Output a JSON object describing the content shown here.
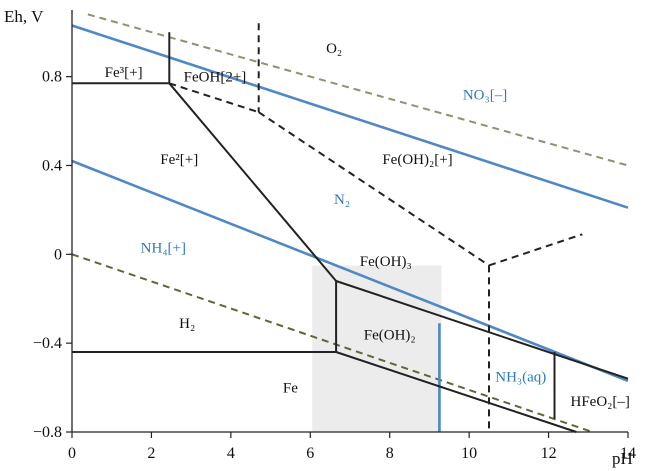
{
  "chart_data": {
    "type": "diagram",
    "xlabel": "pH",
    "ylabel": "Eh, V",
    "xlim": [
      0,
      14
    ],
    "ylim": [
      -0.8,
      1.1
    ],
    "x_ticks": [
      "0",
      "2",
      "4",
      "6",
      "8",
      "10",
      "12",
      "14"
    ],
    "y_ticks": [
      "−0.8",
      "−0.4",
      "0",
      "0.4",
      "0.8"
    ],
    "shaded_region": {
      "x": [
        6.05,
        9.3
      ],
      "y": [
        -0.8,
        -0.05
      ],
      "color": "#ececec"
    },
    "regions": [
      {
        "label": "O₂",
        "at": [
          6.6,
          0.93
        ],
        "kind": "species"
      },
      {
        "label": "Fe³[+]",
        "at": [
          1.3,
          0.82
        ],
        "kind": "species"
      },
      {
        "label": "FeOH[2+]",
        "at": [
          3.6,
          0.8
        ],
        "kind": "species"
      },
      {
        "label": "Fe²[+]",
        "at": [
          2.7,
          0.43
        ],
        "kind": "species"
      },
      {
        "label": "Fe(OH)₂[+]",
        "at": [
          8.7,
          0.43
        ],
        "kind": "species"
      },
      {
        "label": "Fe(OH)₃",
        "at": [
          7.9,
          -0.03
        ],
        "kind": "species"
      },
      {
        "label": "Fe(OH)₂",
        "at": [
          8.0,
          -0.36
        ],
        "kind": "species"
      },
      {
        "label": "H₂",
        "at": [
          2.9,
          -0.31
        ],
        "kind": "species"
      },
      {
        "label": "Fe",
        "at": [
          5.5,
          -0.6
        ],
        "kind": "species"
      },
      {
        "label": "HFeO₂[–]",
        "at": [
          13.3,
          -0.66
        ],
        "kind": "species"
      },
      {
        "label": "NO₃[–]",
        "at": [
          10.4,
          0.72
        ],
        "kind": "nitrogen"
      },
      {
        "label": "N₂",
        "at": [
          6.8,
          0.25
        ],
        "kind": "nitrogen"
      },
      {
        "label": "NH₄[+]",
        "at": [
          2.3,
          0.03
        ],
        "kind": "nitrogen"
      },
      {
        "label": "NH₃(aq)",
        "at": [
          11.3,
          -0.55
        ],
        "kind": "nitrogen"
      }
    ],
    "lines": [
      {
        "id": "water-upper-limit",
        "color": "#8b9470",
        "style": "dashed",
        "points": [
          [
            0.4,
            1.08
          ],
          [
            14,
            0.4
          ]
        ]
      },
      {
        "id": "water-lower-limit",
        "color": "#5b6838",
        "style": "dashed",
        "points": [
          [
            0,
            0
          ],
          [
            13.1,
            -0.8
          ]
        ]
      },
      {
        "id": "n2-no3-boundary",
        "color": "#4f88c4",
        "style": "solid",
        "points": [
          [
            0,
            1.03
          ],
          [
            14,
            0.21
          ]
        ]
      },
      {
        "id": "nh4-n2-boundary",
        "color": "#4f88c4",
        "style": "solid",
        "points": [
          [
            0,
            0.42
          ],
          [
            14,
            -0.57
          ]
        ]
      },
      {
        "id": "nh4-nh3-boundary",
        "color": "#4f88c4",
        "style": "solid",
        "points": [
          [
            9.25,
            -0.31
          ],
          [
            9.25,
            -0.8
          ]
        ]
      },
      {
        "id": "fe3-fe2-boundary",
        "color": "#222222",
        "style": "solid",
        "points": [
          [
            0,
            0.77
          ],
          [
            2.45,
            0.77
          ]
        ]
      },
      {
        "id": "fe3-feoh-boundary",
        "color": "#222222",
        "style": "solid",
        "points": [
          [
            2.45,
            1.0
          ],
          [
            2.45,
            0.77
          ]
        ]
      },
      {
        "id": "fe2-feoh3-boundary",
        "color": "#222222",
        "style": "solid",
        "points": [
          [
            2.45,
            0.77
          ],
          [
            6.65,
            -0.12
          ]
        ]
      },
      {
        "id": "fe2-feoh2-boundary",
        "color": "#222222",
        "style": "solid",
        "points": [
          [
            6.65,
            -0.12
          ],
          [
            6.65,
            -0.44
          ]
        ]
      },
      {
        "id": "fe-fe2-boundary",
        "color": "#222222",
        "style": "solid",
        "points": [
          [
            0,
            -0.44
          ],
          [
            6.65,
            -0.44
          ]
        ]
      },
      {
        "id": "feoh3-feoh2-boundary",
        "color": "#222222",
        "style": "solid",
        "points": [
          [
            6.65,
            -0.12
          ],
          [
            14,
            -0.56
          ]
        ]
      },
      {
        "id": "feoh2-fe-boundary",
        "color": "#222222",
        "style": "solid",
        "points": [
          [
            6.65,
            -0.44
          ],
          [
            12.7,
            -0.8
          ]
        ]
      },
      {
        "id": "feoh2-hfeo2-boundary",
        "color": "#222222",
        "style": "solid",
        "points": [
          [
            12.15,
            -0.44
          ],
          [
            12.15,
            -0.74
          ]
        ]
      },
      {
        "id": "feoh-feoh2-boundary",
        "color": "#222222",
        "style": "dashed",
        "points": [
          [
            2.45,
            0.77
          ],
          [
            4.7,
            0.64
          ]
        ]
      },
      {
        "id": "feoh-o2-boundary",
        "color": "#222222",
        "style": "dashed",
        "points": [
          [
            4.7,
            1.04
          ],
          [
            4.7,
            0.64
          ]
        ]
      },
      {
        "id": "feoh2plus-fe2-boundary",
        "color": "#222222",
        "style": "dashed",
        "points": [
          [
            4.7,
            0.64
          ],
          [
            10.5,
            -0.05
          ]
        ]
      },
      {
        "id": "feoh3-vertical-dashed",
        "color": "#222222",
        "style": "dashed",
        "points": [
          [
            10.5,
            -0.05
          ],
          [
            10.5,
            -0.8
          ]
        ]
      },
      {
        "id": "feoh3-upper-dashed",
        "color": "#222222",
        "style": "dashed",
        "points": [
          [
            10.5,
            -0.05
          ],
          [
            12.85,
            0.09
          ]
        ]
      }
    ]
  }
}
